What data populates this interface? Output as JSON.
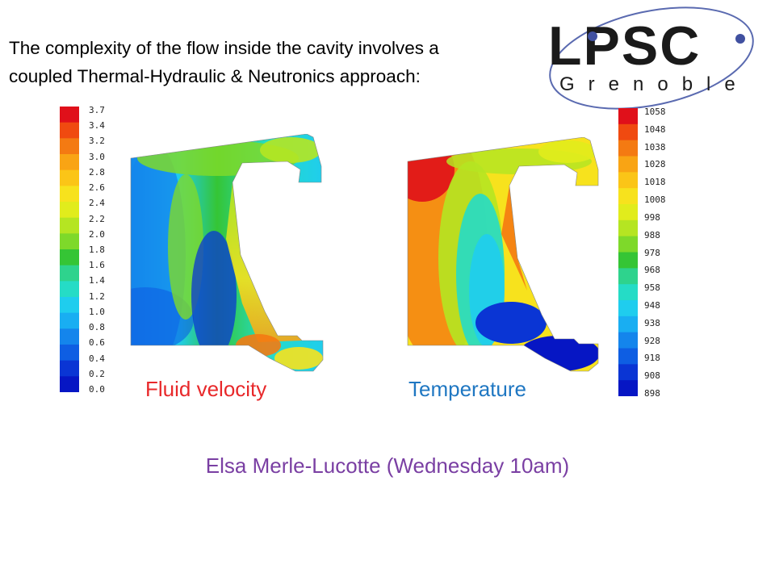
{
  "slide": {
    "title_line1": "The complexity of the flow inside the cavity involves a",
    "title_line2": "coupled Thermal-Hydraulic & Neutronics approach:",
    "speaker": "Elsa Merle-Lucotte (Wednesday 10am)"
  },
  "logo": {
    "letters": "LPSC",
    "city": "Grenoble",
    "color": "#1a1a1a",
    "accent": "#4050a0"
  },
  "velocity_panel": {
    "caption": "Fluid velocity",
    "scale_labels": [
      "3.7",
      "3.4",
      "3.2",
      "3.0",
      "2.8",
      "2.6",
      "2.4",
      "2.2",
      "2.0",
      "1.8",
      "1.6",
      "1.4",
      "1.2",
      "1.0",
      "0.8",
      "0.6",
      "0.4",
      "0.2",
      "0.0"
    ]
  },
  "temperature_panel": {
    "caption": "Temperature",
    "scale_labels": [
      "1058",
      "1048",
      "1038",
      "1028",
      "1018",
      "1008",
      "998",
      "988",
      "978",
      "968",
      "958",
      "948",
      "938",
      "928",
      "918",
      "908",
      "898"
    ]
  },
  "colors": {
    "colormap": [
      "#e0101a",
      "#f04a10",
      "#f47a12",
      "#f9a414",
      "#fbc517",
      "#f7e21d",
      "#e1ec1c",
      "#b5e522",
      "#7ed92a",
      "#35c535",
      "#2ed38d",
      "#25dcc6",
      "#1fcdee",
      "#19aef2",
      "#1485ec",
      "#0e5ee3",
      "#0a35d4",
      "#0616c4"
    ],
    "velocity_caption": "#e8282a",
    "temperature_caption": "#1f77c2",
    "speaker": "#7a3fa3"
  }
}
